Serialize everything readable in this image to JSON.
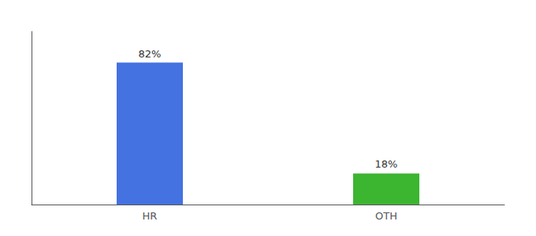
{
  "chart_data": {
    "type": "bar",
    "categories": [
      "HR",
      "OTH"
    ],
    "values": [
      82,
      18
    ],
    "value_labels": [
      "82%",
      "18%"
    ],
    "colors": [
      "#4472e0",
      "#3cb531"
    ],
    "data_labels": true,
    "ylim": [
      0,
      100
    ],
    "grid": false,
    "tick_labels": "x"
  }
}
